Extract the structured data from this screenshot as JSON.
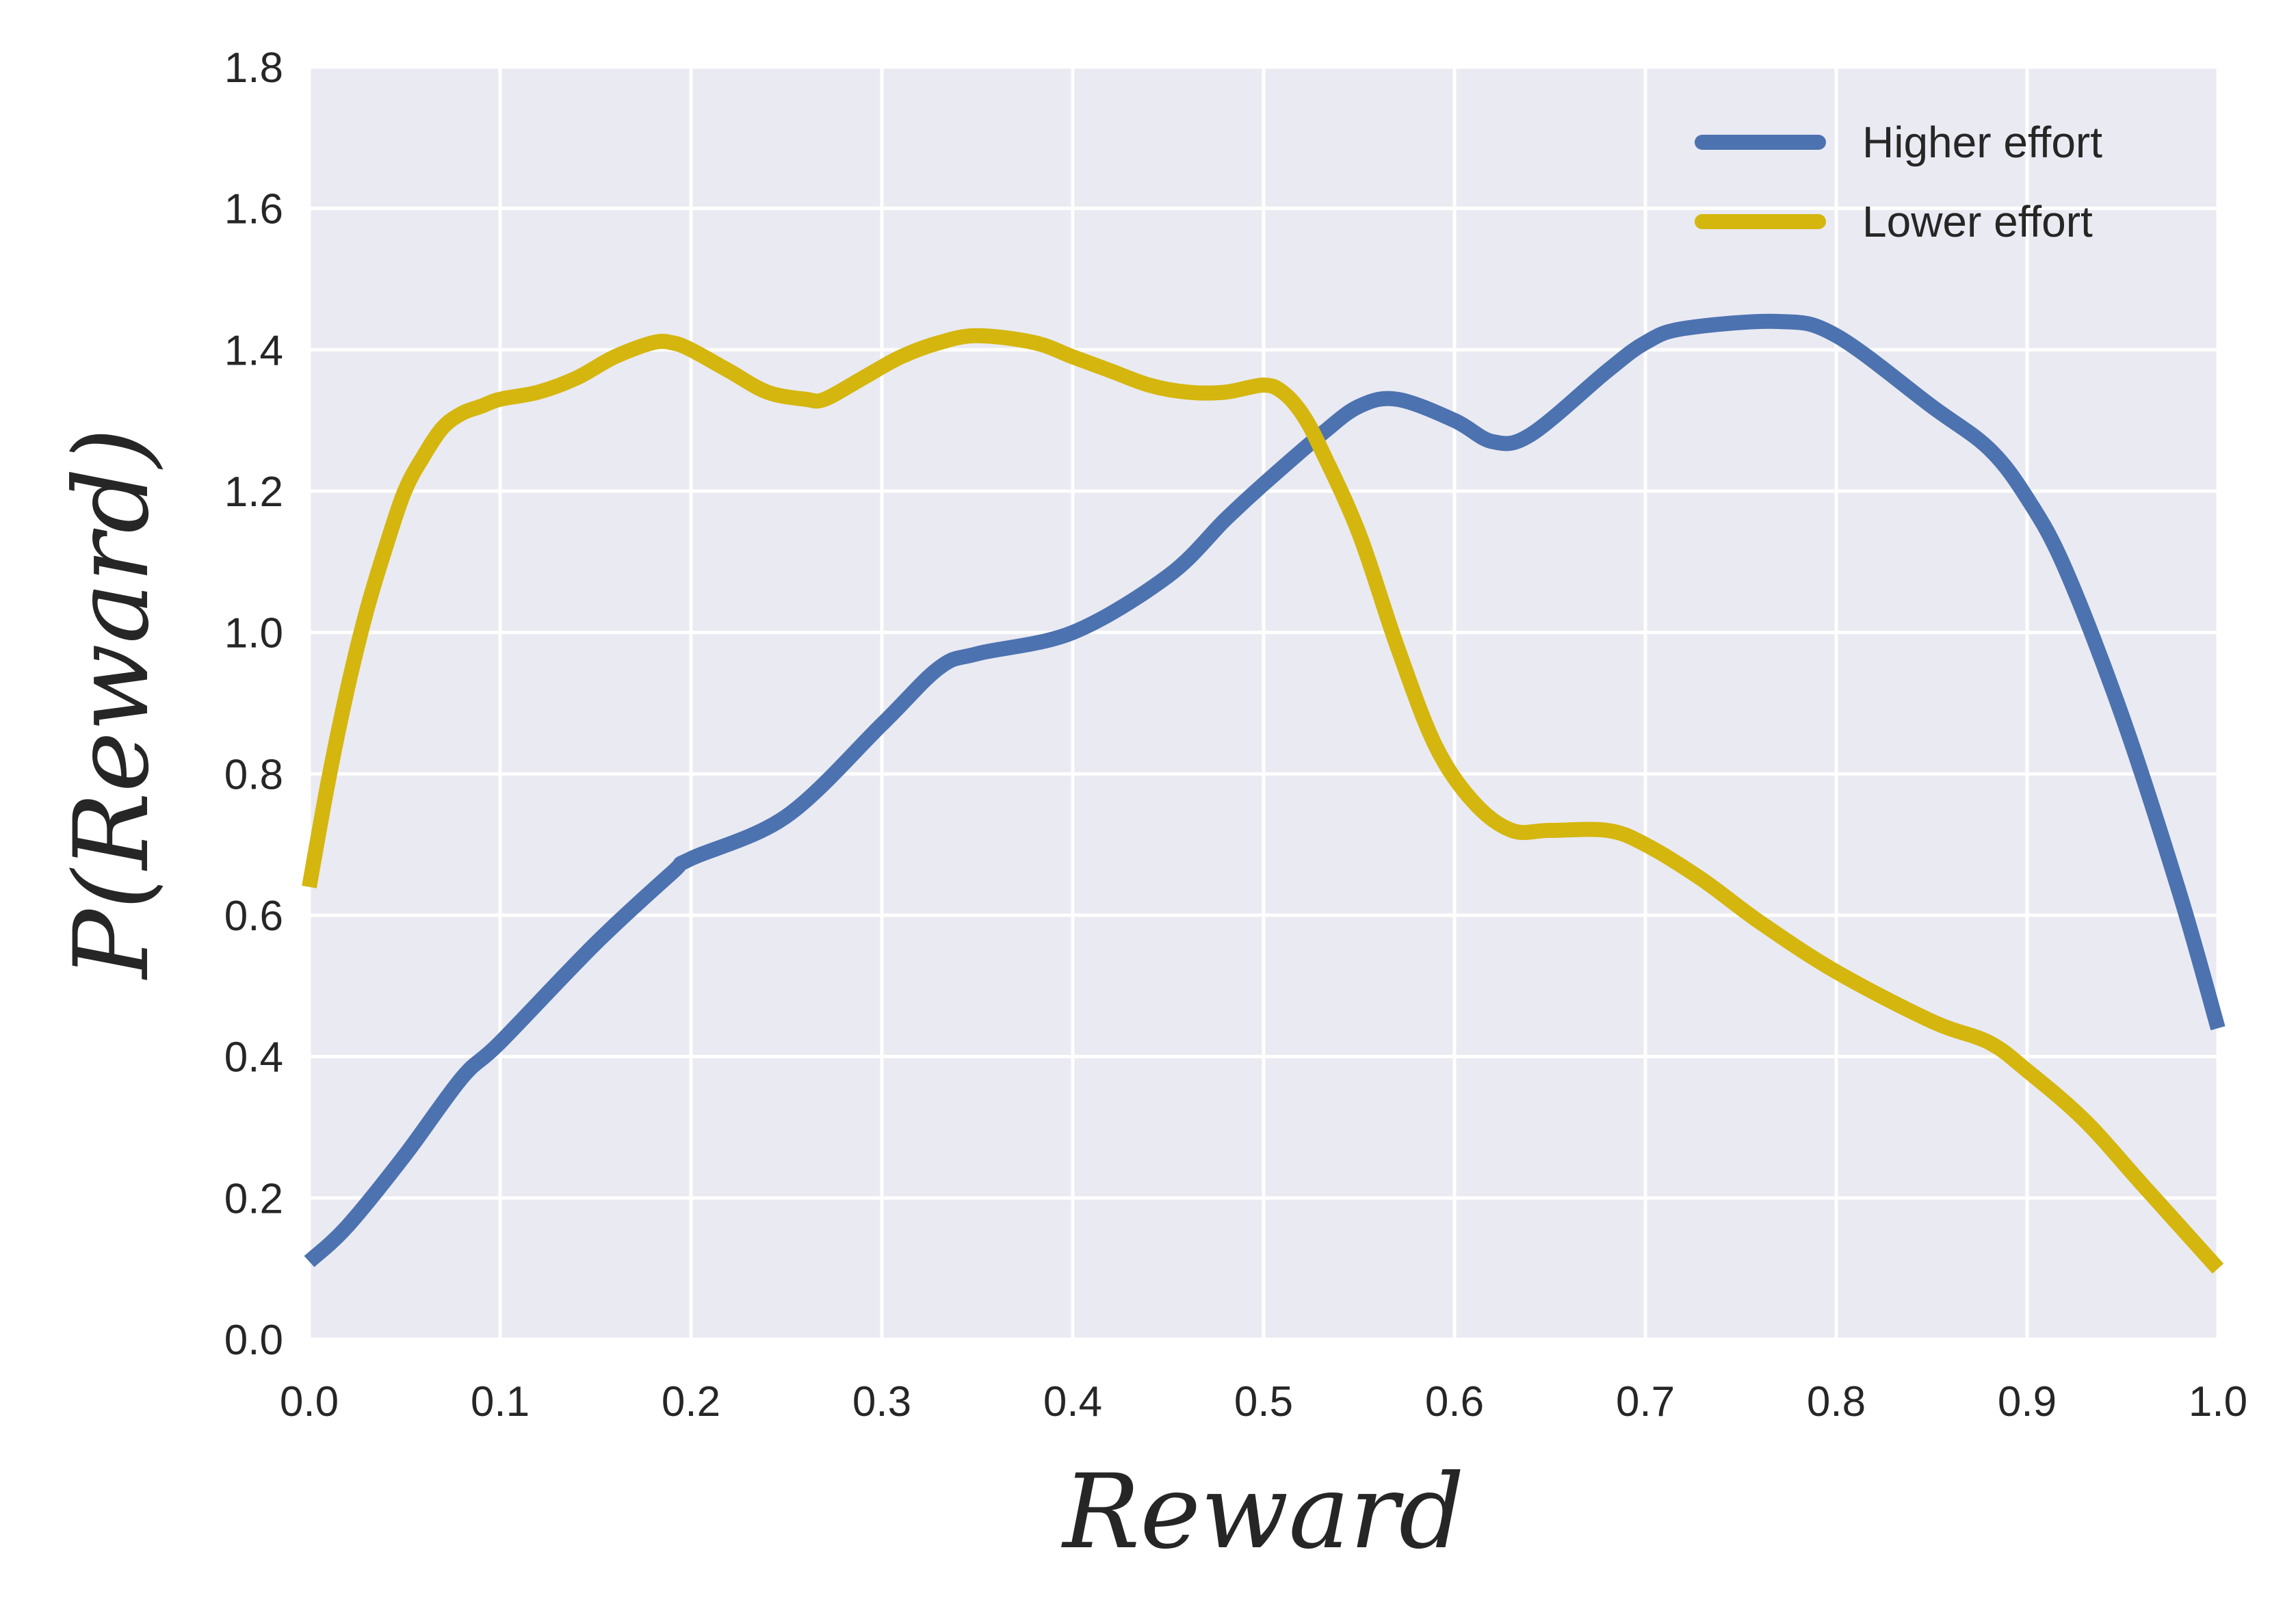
{
  "chart_data": {
    "type": "line",
    "xlabel": "Reward",
    "ylabel": "P(Reward)",
    "xlim": [
      0.0,
      1.0
    ],
    "ylim": [
      0.0,
      1.8
    ],
    "x_ticks": [
      "0.0",
      "0.1",
      "0.2",
      "0.3",
      "0.4",
      "0.5",
      "0.6",
      "0.7",
      "0.8",
      "0.9",
      "1.0"
    ],
    "y_ticks": [
      "0.0",
      "0.2",
      "0.4",
      "0.6",
      "0.8",
      "1.0",
      "1.2",
      "1.4",
      "1.6",
      "1.8"
    ],
    "grid": true,
    "legend_position": "top-right",
    "background_color": "#eaeaf2",
    "series": [
      {
        "name": "Higher effort",
        "color": "#4c72b0",
        "x": [
          0.0,
          0.02,
          0.05,
          0.08,
          0.1,
          0.15,
          0.19,
          0.2,
          0.25,
          0.3,
          0.33,
          0.35,
          0.4,
          0.45,
          0.48,
          0.5,
          0.53,
          0.55,
          0.57,
          0.6,
          0.62,
          0.64,
          0.68,
          0.7,
          0.72,
          0.77,
          0.8,
          0.85,
          0.88,
          0.9,
          0.92,
          0.95,
          0.98,
          1.0
        ],
        "values": [
          0.11,
          0.16,
          0.26,
          0.37,
          0.42,
          0.56,
          0.66,
          0.68,
          0.74,
          0.87,
          0.95,
          0.97,
          1.0,
          1.08,
          1.16,
          1.21,
          1.28,
          1.32,
          1.33,
          1.3,
          1.27,
          1.28,
          1.37,
          1.41,
          1.43,
          1.44,
          1.42,
          1.32,
          1.26,
          1.19,
          1.09,
          0.88,
          0.63,
          0.44
        ]
      },
      {
        "name": "Lower effort",
        "color": "#d4b60e",
        "x": [
          0.0,
          0.01,
          0.02,
          0.03,
          0.04,
          0.05,
          0.06,
          0.07,
          0.08,
          0.09,
          0.1,
          0.12,
          0.14,
          0.16,
          0.18,
          0.19,
          0.2,
          0.22,
          0.24,
          0.26,
          0.27,
          0.29,
          0.31,
          0.33,
          0.35,
          0.38,
          0.4,
          0.42,
          0.44,
          0.46,
          0.48,
          0.5,
          0.51,
          0.52,
          0.53,
          0.55,
          0.57,
          0.59,
          0.61,
          0.63,
          0.65,
          0.68,
          0.7,
          0.73,
          0.76,
          0.8,
          0.85,
          0.88,
          0.9,
          0.93,
          0.96,
          1.0
        ],
        "values": [
          0.64,
          0.79,
          0.92,
          1.03,
          1.12,
          1.2,
          1.25,
          1.29,
          1.31,
          1.32,
          1.33,
          1.34,
          1.36,
          1.39,
          1.41,
          1.41,
          1.4,
          1.37,
          1.34,
          1.33,
          1.33,
          1.36,
          1.39,
          1.41,
          1.42,
          1.41,
          1.39,
          1.37,
          1.35,
          1.34,
          1.34,
          1.35,
          1.34,
          1.31,
          1.26,
          1.14,
          0.98,
          0.84,
          0.76,
          0.72,
          0.72,
          0.72,
          0.7,
          0.65,
          0.59,
          0.52,
          0.45,
          0.42,
          0.38,
          0.31,
          0.22,
          0.1
        ]
      }
    ]
  }
}
